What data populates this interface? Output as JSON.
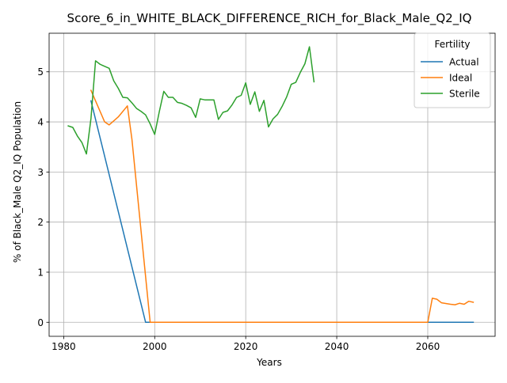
{
  "chart_data": {
    "type": "line",
    "title": "Score_6_in_WHITE_BLACK_DIFFERENCE_RICH_for_Black_Male_Q2_IQ",
    "xlabel": "Years",
    "ylabel": "% of Black_Male Q2_IQ Population",
    "xlim": [
      1976.8,
      2074.8
    ],
    "ylim": [
      -0.28,
      5.77
    ],
    "xticks": [
      1980,
      2000,
      2020,
      2040,
      2060
    ],
    "yticks": [
      0,
      1,
      2,
      3,
      4,
      5
    ],
    "grid": true,
    "legend": {
      "title": "Fertility",
      "position": "top-right"
    },
    "series": [
      {
        "name": "Actual",
        "color": "#1f77b4",
        "points": [
          [
            1986,
            4.42
          ],
          [
            1998,
            0.0
          ],
          [
            2060,
            0.0
          ],
          [
            2070,
            0.0
          ]
        ]
      },
      {
        "name": "Ideal",
        "color": "#ff7f0e",
        "points": [
          [
            1986,
            4.63
          ],
          [
            1989,
            4.0
          ],
          [
            1990,
            3.94
          ],
          [
            1992,
            4.1
          ],
          [
            1994,
            4.32
          ],
          [
            1995,
            3.65
          ],
          [
            1999,
            0.0
          ],
          [
            2060,
            0.0
          ],
          [
            2061,
            0.48
          ],
          [
            2062,
            0.46
          ],
          [
            2063,
            0.39
          ],
          [
            2065,
            0.36
          ],
          [
            2066,
            0.35
          ],
          [
            2067,
            0.38
          ],
          [
            2068,
            0.36
          ],
          [
            2069,
            0.42
          ],
          [
            2070,
            0.4
          ]
        ]
      },
      {
        "name": "Sterile",
        "color": "#2ca02c",
        "points": [
          [
            1981,
            3.92
          ],
          [
            1982,
            3.89
          ],
          [
            1983,
            3.72
          ],
          [
            1984,
            3.59
          ],
          [
            1985,
            3.36
          ],
          [
            1986,
            4.07
          ],
          [
            1987,
            5.22
          ],
          [
            1988,
            5.15
          ],
          [
            1989,
            5.11
          ],
          [
            1990,
            5.07
          ],
          [
            1991,
            4.82
          ],
          [
            1992,
            4.67
          ],
          [
            1993,
            4.49
          ],
          [
            1994,
            4.48
          ],
          [
            1995,
            4.38
          ],
          [
            1996,
            4.27
          ],
          [
            1997,
            4.21
          ],
          [
            1998,
            4.14
          ],
          [
            1999,
            3.96
          ],
          [
            2000,
            3.75
          ],
          [
            2001,
            4.2
          ],
          [
            2002,
            4.61
          ],
          [
            2003,
            4.49
          ],
          [
            2004,
            4.49
          ],
          [
            2005,
            4.39
          ],
          [
            2006,
            4.37
          ],
          [
            2007,
            4.33
          ],
          [
            2008,
            4.28
          ],
          [
            2009,
            4.09
          ],
          [
            2010,
            4.46
          ],
          [
            2011,
            4.44
          ],
          [
            2012,
            4.44
          ],
          [
            2013,
            4.44
          ],
          [
            2014,
            4.05
          ],
          [
            2015,
            4.19
          ],
          [
            2016,
            4.22
          ],
          [
            2017,
            4.34
          ],
          [
            2018,
            4.49
          ],
          [
            2019,
            4.53
          ],
          [
            2020,
            4.78
          ],
          [
            2021,
            4.35
          ],
          [
            2022,
            4.6
          ],
          [
            2023,
            4.21
          ],
          [
            2024,
            4.43
          ],
          [
            2025,
            3.9
          ],
          [
            2026,
            4.06
          ],
          [
            2027,
            4.15
          ],
          [
            2028,
            4.31
          ],
          [
            2029,
            4.5
          ],
          [
            2030,
            4.75
          ],
          [
            2031,
            4.79
          ],
          [
            2032,
            4.99
          ],
          [
            2033,
            5.16
          ],
          [
            2034,
            5.5
          ],
          [
            2035,
            4.8
          ]
        ]
      }
    ]
  }
}
